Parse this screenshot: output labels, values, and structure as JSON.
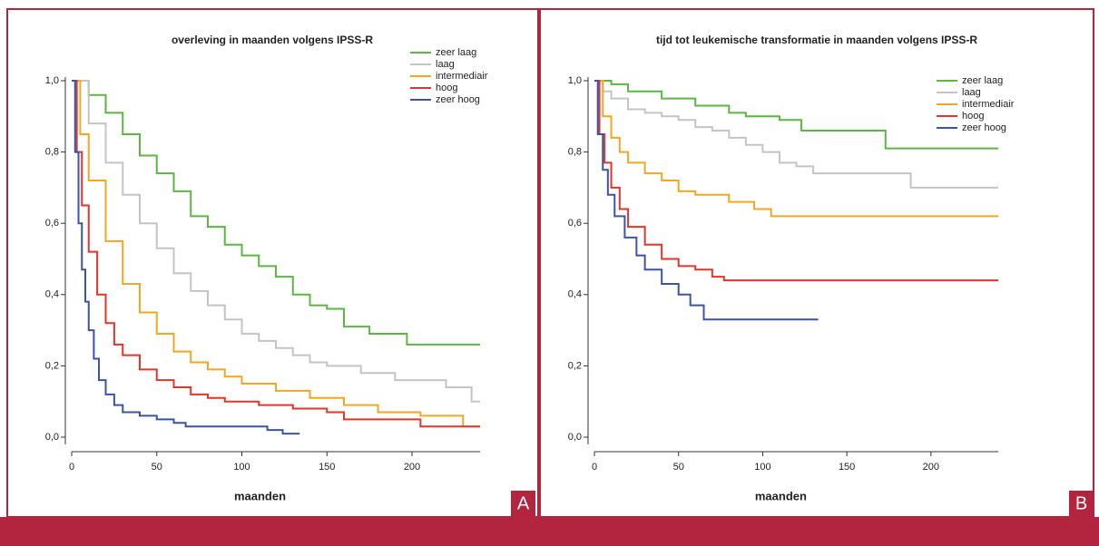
{
  "chart_data": [
    {
      "type": "line",
      "step": "post",
      "title": "overleving in maanden volgens IPSS-R",
      "xlabel": "maanden",
      "panel_label": "A",
      "xlim": [
        0,
        240
      ],
      "ylim": [
        0,
        1
      ],
      "xticks": [
        0,
        50,
        100,
        150,
        200
      ],
      "yticks": [
        {
          "value": 0,
          "label": "0,0"
        },
        {
          "value": 0.2,
          "label": "0,2"
        },
        {
          "value": 0.4,
          "label": "0,4"
        },
        {
          "value": 0.6,
          "label": "0,6"
        },
        {
          "value": 0.8,
          "label": "0,8"
        },
        {
          "value": 1,
          "label": "1,0"
        }
      ],
      "legend": "top-right",
      "series": [
        {
          "name": "zeer laag",
          "color": "#5db544",
          "x": [
            0,
            10,
            20,
            30,
            40,
            50,
            60,
            70,
            80,
            90,
            100,
            110,
            120,
            130,
            140,
            150,
            160,
            175,
            197,
            240
          ],
          "values": [
            1,
            0.96,
            0.91,
            0.85,
            0.79,
            0.74,
            0.69,
            0.62,
            0.59,
            0.54,
            0.51,
            0.48,
            0.45,
            0.4,
            0.37,
            0.36,
            0.31,
            0.29,
            0.26,
            0.26
          ]
        },
        {
          "name": "laag",
          "color": "#c4c4c4",
          "x": [
            0,
            10,
            20,
            30,
            40,
            50,
            60,
            70,
            80,
            90,
            100,
            110,
            120,
            130,
            140,
            150,
            170,
            190,
            220,
            235,
            240
          ],
          "values": [
            1,
            0.88,
            0.77,
            0.68,
            0.6,
            0.53,
            0.46,
            0.41,
            0.37,
            0.33,
            0.29,
            0.27,
            0.25,
            0.23,
            0.21,
            0.2,
            0.18,
            0.16,
            0.14,
            0.1,
            0.1
          ]
        },
        {
          "name": "intermediair",
          "color": "#f2a623",
          "x": [
            0,
            5,
            10,
            20,
            30,
            40,
            50,
            60,
            70,
            80,
            90,
            100,
            120,
            140,
            160,
            180,
            205,
            230,
            240
          ],
          "values": [
            1,
            0.85,
            0.72,
            0.55,
            0.43,
            0.35,
            0.29,
            0.24,
            0.21,
            0.19,
            0.17,
            0.15,
            0.13,
            0.11,
            0.09,
            0.07,
            0.06,
            0.03,
            0.03
          ]
        },
        {
          "name": "hoog",
          "color": "#e2352b",
          "x": [
            0,
            3,
            6,
            10,
            15,
            20,
            25,
            30,
            40,
            50,
            60,
            70,
            80,
            90,
            110,
            130,
            150,
            160,
            205,
            240
          ],
          "values": [
            1,
            0.8,
            0.65,
            0.52,
            0.4,
            0.32,
            0.26,
            0.23,
            0.19,
            0.16,
            0.14,
            0.12,
            0.11,
            0.1,
            0.09,
            0.08,
            0.07,
            0.05,
            0.03,
            0.03
          ]
        },
        {
          "name": "zeer hoog",
          "color": "#3a55a6",
          "x": [
            0,
            2,
            4,
            6,
            8,
            10,
            13,
            16,
            20,
            25,
            30,
            40,
            50,
            60,
            67,
            115,
            124,
            134
          ],
          "values": [
            1,
            0.8,
            0.6,
            0.47,
            0.38,
            0.3,
            0.22,
            0.16,
            0.12,
            0.09,
            0.07,
            0.06,
            0.05,
            0.04,
            0.03,
            0.02,
            0.01,
            0.01
          ]
        }
      ]
    },
    {
      "type": "line",
      "step": "post",
      "title": "tijd tot leukemische transformatie in maanden volgens IPSS-R",
      "xlabel": "maanden",
      "panel_label": "B",
      "xlim": [
        0,
        240
      ],
      "ylim": [
        0,
        1
      ],
      "xticks": [
        0,
        50,
        100,
        150,
        200
      ],
      "yticks": [
        {
          "value": 0,
          "label": "0,0"
        },
        {
          "value": 0.2,
          "label": "0,2"
        },
        {
          "value": 0.4,
          "label": "0,4"
        },
        {
          "value": 0.6,
          "label": "0,6"
        },
        {
          "value": 0.8,
          "label": "0,8"
        },
        {
          "value": 1,
          "label": "1,0"
        }
      ],
      "legend": "top-right",
      "series": [
        {
          "name": "zeer laag",
          "color": "#5db544",
          "x": [
            0,
            10,
            20,
            40,
            60,
            80,
            90,
            110,
            123,
            173,
            240
          ],
          "values": [
            1,
            0.99,
            0.97,
            0.95,
            0.93,
            0.91,
            0.9,
            0.89,
            0.86,
            0.81,
            0.81
          ]
        },
        {
          "name": "laag",
          "color": "#c4c4c4",
          "x": [
            0,
            5,
            10,
            20,
            30,
            40,
            50,
            60,
            70,
            80,
            90,
            100,
            110,
            120,
            130,
            188,
            240
          ],
          "values": [
            1,
            0.97,
            0.95,
            0.92,
            0.91,
            0.9,
            0.89,
            0.87,
            0.86,
            0.84,
            0.82,
            0.8,
            0.77,
            0.76,
            0.74,
            0.7,
            0.7
          ]
        },
        {
          "name": "intermediair",
          "color": "#f2a623",
          "x": [
            0,
            5,
            10,
            15,
            20,
            30,
            40,
            50,
            60,
            80,
            95,
            105,
            240
          ],
          "values": [
            1,
            0.9,
            0.84,
            0.8,
            0.77,
            0.74,
            0.72,
            0.69,
            0.68,
            0.66,
            0.64,
            0.62,
            0.62
          ]
        },
        {
          "name": "hoog",
          "color": "#e2352b",
          "x": [
            0,
            3,
            6,
            10,
            15,
            20,
            30,
            40,
            50,
            60,
            70,
            77,
            240
          ],
          "values": [
            1,
            0.85,
            0.77,
            0.7,
            0.64,
            0.59,
            0.54,
            0.5,
            0.48,
            0.47,
            0.45,
            0.44,
            0.44
          ]
        },
        {
          "name": "zeer hoog",
          "color": "#3a55a6",
          "x": [
            0,
            2,
            5,
            8,
            12,
            18,
            25,
            30,
            40,
            50,
            57,
            65,
            133
          ],
          "values": [
            1,
            0.85,
            0.75,
            0.68,
            0.62,
            0.56,
            0.51,
            0.47,
            0.43,
            0.4,
            0.37,
            0.33,
            0.33
          ]
        }
      ]
    }
  ]
}
